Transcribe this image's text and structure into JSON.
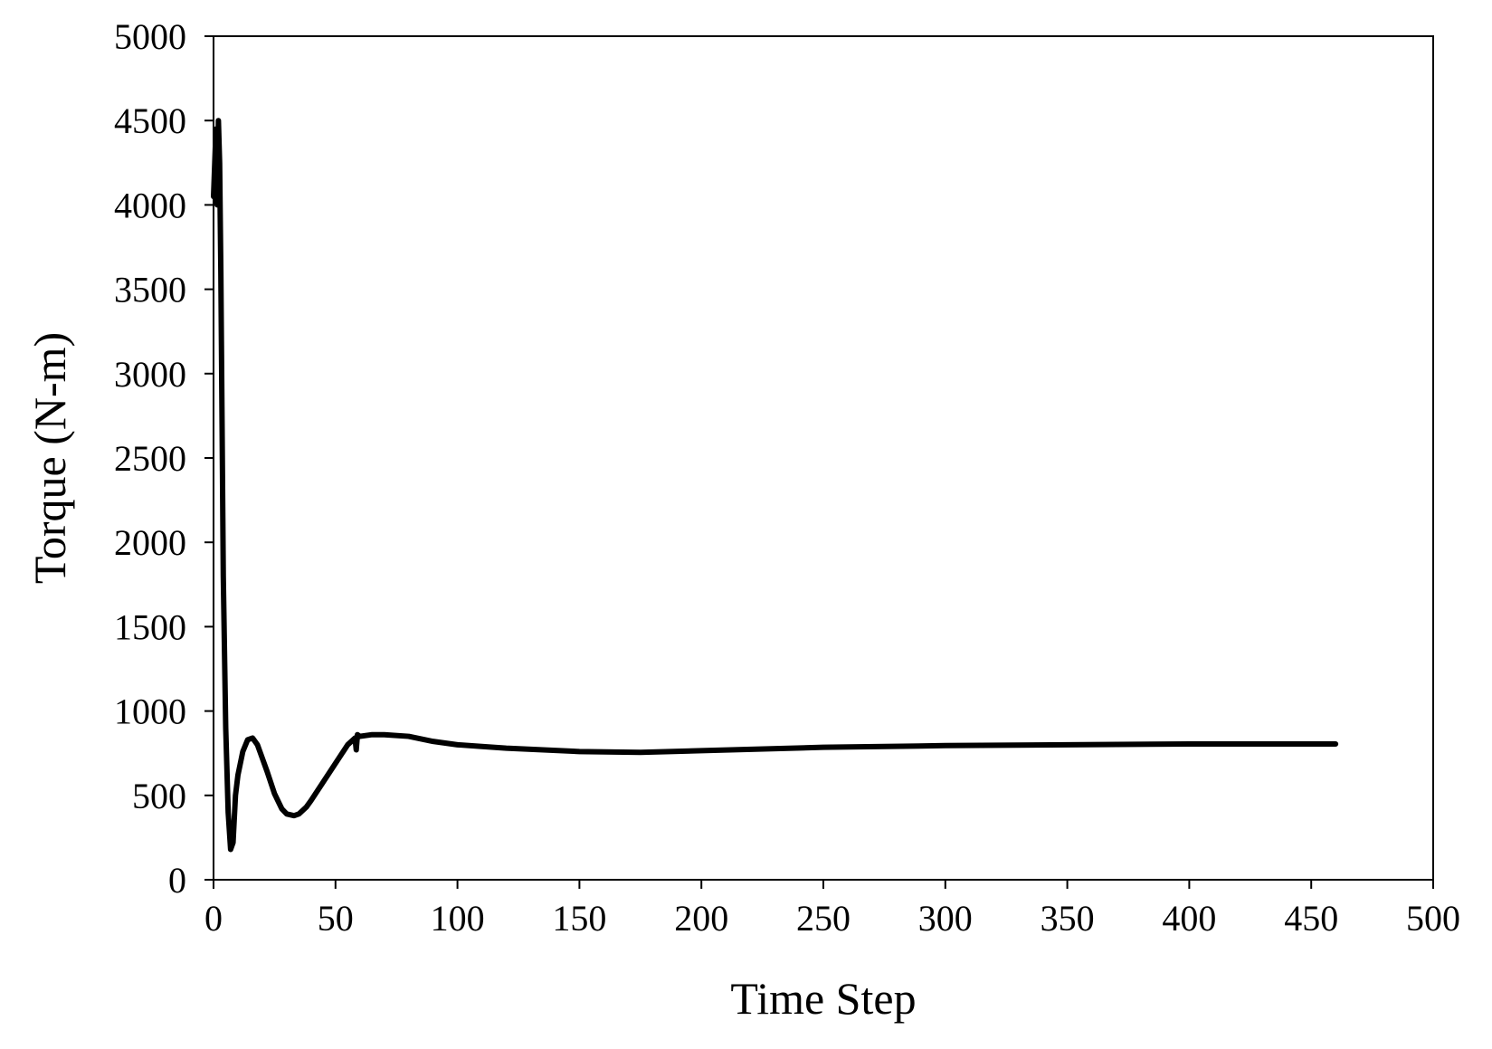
{
  "chart_data": {
    "type": "line",
    "title": "",
    "xlabel": "Time Step",
    "ylabel": "Torque (N-m)",
    "xlim": [
      0,
      500
    ],
    "ylim": [
      0,
      5000
    ],
    "xticks": [
      0,
      50,
      100,
      150,
      200,
      250,
      300,
      350,
      400,
      450,
      500
    ],
    "yticks": [
      0,
      500,
      1000,
      1500,
      2000,
      2500,
      3000,
      3500,
      4000,
      4500,
      5000
    ],
    "grid": false,
    "legend": "none",
    "line_color": "#000000",
    "series": [
      {
        "x": [
          0,
          1,
          1.5,
          2,
          2.5,
          3,
          3.5,
          4,
          5,
          6,
          7,
          8,
          9,
          10,
          12,
          14,
          16,
          18,
          20,
          22,
          25,
          28,
          30,
          33,
          35,
          38,
          40,
          45,
          50,
          55,
          58,
          58.5,
          59,
          60,
          65,
          70,
          80,
          90,
          100,
          110,
          120,
          150,
          175,
          200,
          250,
          300,
          350,
          400,
          440,
          460
        ],
        "y": [
          4050,
          4450,
          4000,
          4500,
          4250,
          3600,
          2700,
          1800,
          900,
          400,
          180,
          220,
          500,
          620,
          760,
          830,
          840,
          800,
          720,
          640,
          510,
          420,
          390,
          380,
          390,
          430,
          470,
          580,
          690,
          800,
          840,
          770,
          860,
          850,
          860,
          860,
          850,
          820,
          800,
          790,
          780,
          760,
          755,
          765,
          785,
          795,
          800,
          805,
          805,
          805
        ]
      }
    ]
  }
}
